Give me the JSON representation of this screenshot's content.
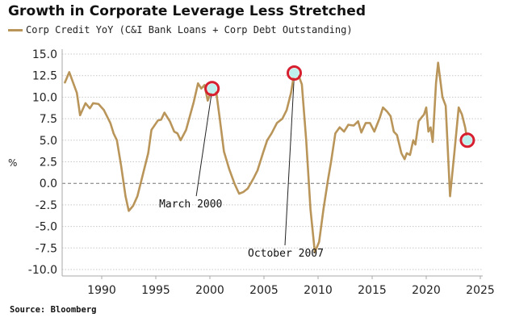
{
  "chart_data": {
    "type": "line",
    "title": "Growth in Corporate Leverage Less Stretched",
    "xlabel": "",
    "ylabel": "%",
    "source": "Source: Bloomberg",
    "xlim": [
      1986.5,
      2025
    ],
    "ylim": [
      -10,
      15
    ],
    "x_ticks": [
      1990,
      1995,
      2000,
      2005,
      2010,
      2015,
      2020,
      2025
    ],
    "x_tick_labels": [
      "1990",
      "1995",
      "2000",
      "2005",
      "2010",
      "2015",
      "2020",
      "2025"
    ],
    "y_ticks": [
      15,
      12.5,
      10,
      7.5,
      5,
      2.5,
      0,
      -2.5,
      -5,
      -7.5,
      -10
    ],
    "y_tick_labels": [
      "15.0",
      "12.5",
      "10.0",
      "7.5",
      "5.0",
      "2.5",
      "0.0",
      "-2.5",
      "-5.0",
      "-7.5",
      "-10.0"
    ],
    "grid": true,
    "legend_position": "top-left",
    "series": [
      {
        "name": "Corp Credit YoY (C&I Bank Loans + Corp Debt Outstanding)",
        "color": "#b9955a",
        "x": [
          1986.6,
          1987.0,
          1987.7,
          1988.0,
          1988.5,
          1988.9,
          1989.2,
          1989.7,
          1990.2,
          1990.8,
          1991.1,
          1991.4,
          1991.8,
          1992.2,
          1992.5,
          1992.9,
          1993.3,
          1993.8,
          1994.3,
          1994.6,
          1995.2,
          1995.5,
          1995.8,
          1996.3,
          1996.7,
          1997.0,
          1997.3,
          1997.8,
          1998.5,
          1998.9,
          1999.2,
          1999.5,
          1999.8,
          2000.2,
          2000.6,
          2000.9,
          2001.3,
          2001.8,
          2002.3,
          2002.7,
          2003.1,
          2003.5,
          2004.0,
          2004.4,
          2004.9,
          2005.3,
          2005.7,
          2006.2,
          2006.7,
          2007.1,
          2007.5,
          2007.8,
          2008.2,
          2008.5,
          2008.9,
          2009.3,
          2009.7,
          2010.1,
          2010.5,
          2010.9,
          2011.2,
          2011.6,
          2012.0,
          2012.4,
          2012.8,
          2013.3,
          2013.7,
          2014.0,
          2014.4,
          2014.8,
          2015.2,
          2015.7,
          2016.0,
          2016.4,
          2016.7,
          2017.0,
          2017.3,
          2017.7,
          2018.0,
          2018.2,
          2018.5,
          2018.8,
          2019.0,
          2019.3,
          2019.6,
          2019.8,
          2020.0,
          2020.2,
          2020.4,
          2020.6,
          2020.9,
          2021.1,
          2021.5,
          2021.8,
          2022.2,
          2022.6,
          2023.0,
          2023.3,
          2023.6,
          2023.8
        ],
        "values": [
          11.7,
          12.9,
          10.5,
          7.9,
          9.3,
          8.7,
          9.3,
          9.2,
          8.5,
          7.0,
          5.8,
          5.0,
          2.0,
          -1.5,
          -3.2,
          -2.6,
          -1.5,
          1.0,
          3.5,
          6.2,
          7.3,
          7.4,
          8.2,
          7.2,
          6.0,
          5.8,
          5.0,
          6.2,
          9.4,
          11.6,
          11.0,
          11.4,
          9.6,
          11.0,
          10.5,
          7.6,
          3.7,
          1.6,
          -0.1,
          -1.2,
          -1.0,
          -0.6,
          0.5,
          1.5,
          3.5,
          5.0,
          5.8,
          7.0,
          7.5,
          8.5,
          10.5,
          12.8,
          12.5,
          11.5,
          5.0,
          -3.0,
          -8.0,
          -6.8,
          -3.0,
          0.3,
          2.5,
          5.8,
          6.5,
          6.0,
          6.8,
          6.7,
          7.2,
          5.9,
          7.0,
          7.0,
          6.0,
          7.6,
          8.8,
          8.3,
          7.8,
          6.0,
          5.6,
          3.5,
          2.8,
          3.5,
          3.3,
          5.0,
          4.5,
          7.2,
          7.7,
          8.0,
          8.8,
          6.0,
          6.5,
          4.8,
          11.6,
          14.0,
          10.0,
          9.0,
          -1.5,
          3.5,
          8.8,
          8.0,
          6.5,
          5.0
        ]
      }
    ],
    "annotations": [
      {
        "label": "March 2000",
        "x": 2000.2,
        "y": 11.0,
        "label_x": 1996.8,
        "label_y": -2.8
      },
      {
        "label": "October 2007",
        "x": 2007.8,
        "y": 12.8,
        "label_x": 2005.0,
        "label_y": -8.5
      },
      {
        "label": "",
        "x": 2023.8,
        "y": 5.0
      }
    ],
    "marker_colors": {
      "ring": "#d61f2f",
      "center": "#bff0ee"
    }
  }
}
